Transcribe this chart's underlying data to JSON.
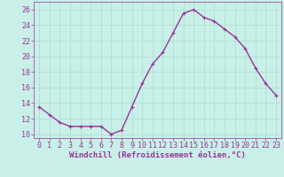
{
  "x": [
    0,
    1,
    2,
    3,
    4,
    5,
    6,
    7,
    8,
    9,
    10,
    11,
    12,
    13,
    14,
    15,
    16,
    17,
    18,
    19,
    20,
    21,
    22,
    23
  ],
  "y": [
    13.5,
    12.5,
    11.5,
    11.0,
    11.0,
    11.0,
    11.0,
    10.0,
    10.5,
    13.5,
    16.5,
    19.0,
    20.5,
    23.0,
    25.5,
    26.0,
    25.0,
    24.5,
    23.5,
    22.5,
    21.0,
    18.5,
    16.5,
    15.0
  ],
  "line_color": "#993399",
  "marker": "+",
  "marker_size": 3,
  "background_color": "#c8f0e8",
  "grid_color": "#aaddcc",
  "xlabel": "Windchill (Refroidissement éolien,°C)",
  "xlim": [
    -0.5,
    23.5
  ],
  "ylim": [
    9.5,
    27.0
  ],
  "yticks": [
    10,
    12,
    14,
    16,
    18,
    20,
    22,
    24,
    26
  ],
  "xticks": [
    0,
    1,
    2,
    3,
    4,
    5,
    6,
    7,
    8,
    9,
    10,
    11,
    12,
    13,
    14,
    15,
    16,
    17,
    18,
    19,
    20,
    21,
    22,
    23
  ],
  "xlabel_fontsize": 6.5,
  "tick_fontsize": 6.0,
  "line_width": 1.0
}
